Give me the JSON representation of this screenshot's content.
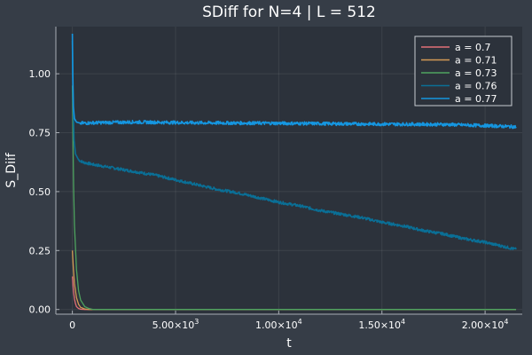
{
  "chart_data": {
    "type": "line",
    "title": "SDiff for N=4 | L = 512",
    "xlabel": "t",
    "ylabel": "S_Diif",
    "xlim": [
      -800,
      21800
    ],
    "ylim": [
      -0.02,
      1.2
    ],
    "xticks": [
      {
        "value": 0,
        "label": "0",
        "exp": ""
      },
      {
        "value": 5000,
        "label": "5.00×10",
        "exp": "3"
      },
      {
        "value": 10000,
        "label": "1.00×10",
        "exp": "4"
      },
      {
        "value": 15000,
        "label": "1.50×10",
        "exp": "4"
      },
      {
        "value": 20000,
        "label": "2.00×10",
        "exp": "4"
      }
    ],
    "yticks": [
      {
        "value": 0.0,
        "label": "0.00"
      },
      {
        "value": 0.25,
        "label": "0.25"
      },
      {
        "value": 0.5,
        "label": "0.50"
      },
      {
        "value": 0.75,
        "label": "0.75"
      },
      {
        "value": 1.0,
        "label": "1.00"
      }
    ],
    "grid": true,
    "legend": "top-right",
    "series": [
      {
        "name": "a = 0.7",
        "color": "#e26f77",
        "x": [
          0,
          50,
          100,
          150,
          200,
          300,
          400,
          600,
          21500
        ],
        "y": [
          0.14,
          0.08,
          0.045,
          0.025,
          0.012,
          0.004,
          0.001,
          0.0,
          0.0
        ]
      },
      {
        "name": "a = 0.71",
        "color": "#d49a55",
        "x": [
          0,
          50,
          100,
          200,
          300,
          400,
          600,
          800,
          21500
        ],
        "y": [
          0.25,
          0.17,
          0.11,
          0.05,
          0.022,
          0.009,
          0.002,
          0.0,
          0.0
        ]
      },
      {
        "name": "a = 0.73",
        "color": "#4ea35f",
        "x": [
          0,
          25,
          60,
          100,
          200,
          300,
          400,
          600,
          800,
          1000,
          21500
        ],
        "y": [
          0.95,
          0.76,
          0.52,
          0.36,
          0.17,
          0.08,
          0.04,
          0.012,
          0.004,
          0.0,
          0.0
        ]
      },
      {
        "name": "a = 0.76",
        "color": "#0a6f96",
        "x": [
          0,
          30,
          80,
          150,
          300,
          500,
          1000,
          2000,
          3000,
          4000,
          5000,
          6000,
          7000,
          8000,
          9000,
          10000,
          11000,
          12000,
          13000,
          14000,
          15000,
          16000,
          17000,
          18000,
          19000,
          20000,
          21000,
          21500
        ],
        "y": [
          1.14,
          0.9,
          0.72,
          0.66,
          0.635,
          0.625,
          0.615,
          0.6,
          0.585,
          0.57,
          0.55,
          0.53,
          0.51,
          0.495,
          0.475,
          0.455,
          0.44,
          0.42,
          0.405,
          0.39,
          0.37,
          0.355,
          0.335,
          0.32,
          0.3,
          0.285,
          0.265,
          0.255
        ],
        "noise": 0.006
      },
      {
        "name": "a = 0.77",
        "color": "#1596e0",
        "x": [
          0,
          20,
          50,
          100,
          200,
          400,
          1000,
          3000,
          6000,
          10000,
          14000,
          18000,
          20000,
          21500
        ],
        "y": [
          1.17,
          1.0,
          0.86,
          0.81,
          0.795,
          0.79,
          0.792,
          0.795,
          0.792,
          0.79,
          0.787,
          0.785,
          0.78,
          0.775
        ],
        "noise": 0.007
      }
    ]
  }
}
